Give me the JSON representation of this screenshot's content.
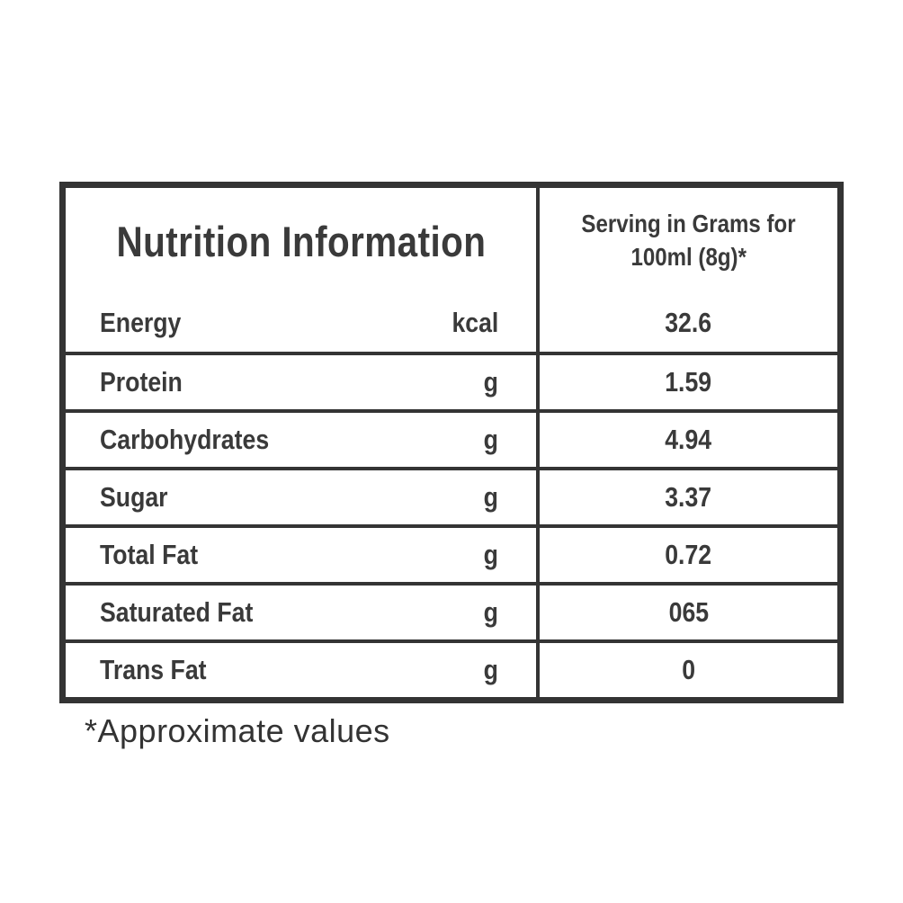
{
  "colors": {
    "border": "#343434",
    "text": "#3a3a3a",
    "background": "#ffffff"
  },
  "table": {
    "header": {
      "title": "Nutrition Information",
      "serving_line1": "Serving in Grams for",
      "serving_line2": "100ml (8g)*"
    },
    "rows": [
      {
        "label": "Energy",
        "unit": "kcal",
        "value": "32.6"
      },
      {
        "label": "Protein",
        "unit": "g",
        "value": "1.59"
      },
      {
        "label": "Carbohydrates",
        "unit": "g",
        "value": "4.94"
      },
      {
        "label": "Sugar",
        "unit": "g",
        "value": "3.37"
      },
      {
        "label": "Total Fat",
        "unit": "g",
        "value": "0.72"
      },
      {
        "label": "Saturated Fat",
        "unit": "g",
        "value": "065"
      },
      {
        "label": "Trans Fat",
        "unit": "g",
        "value": "0"
      }
    ],
    "footnote": "*Approximate values"
  }
}
